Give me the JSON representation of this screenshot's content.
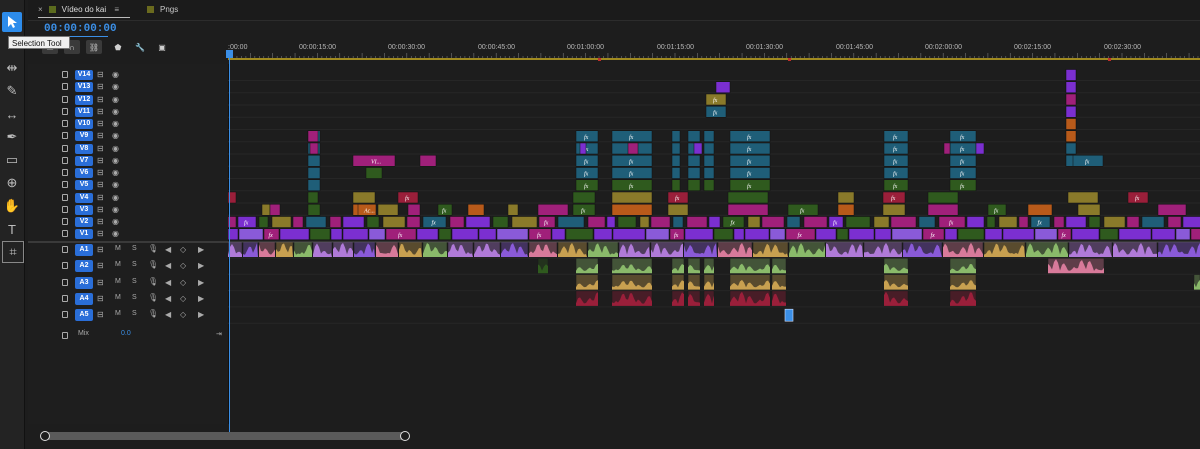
{
  "tooltip": "Selection Tool",
  "tabs": [
    {
      "label": "Vídeo do kai",
      "color": "#5b6b1e"
    },
    {
      "label": "Pngs",
      "color": "#6a6a1e"
    }
  ],
  "tab_close": "×",
  "tab_menu": "≡",
  "timecode": "00:00:00:00",
  "ruler_labels": [
    ":00:00",
    "00:00:15:00",
    "00:00:30:00",
    "00:00:45:00",
    "00:01:00:00",
    "00:01:15:00",
    "00:01:30:00",
    "00:01:45:00",
    "00:02:00:00",
    "00:02:15:00",
    "00:02:30:00"
  ],
  "video_tracks": [
    "V14",
    "V13",
    "V12",
    "V11",
    "V10",
    "V9",
    "V8",
    "V7",
    "V6",
    "V5",
    "V4",
    "V3",
    "V2",
    "V1"
  ],
  "audio_tracks": [
    "A1",
    "A2",
    "A3",
    "A4",
    "A5"
  ],
  "audio_controls": {
    "mute": "M",
    "solo": "S"
  },
  "mix": {
    "label": "Mix",
    "value": "0.0"
  },
  "clip_labels": {
    "fx": "fx",
    "vi": "VI...",
    "ac": "Ac..."
  },
  "colors": {
    "accent": "#2d8ceb",
    "purple": "#7b2fd0",
    "magenta": "#a0207a",
    "darkgreen": "#2f5a1e",
    "teal": "#1f5e78",
    "olive": "#8a7a2a",
    "crimson": "#9a1f3a",
    "orange": "#b85a1a",
    "lavender": "#b07ad8",
    "pink": "#d87a9a",
    "lightgreen": "#8aba6a",
    "tan": "#c8a050",
    "violet": "#8a5ad8"
  }
}
